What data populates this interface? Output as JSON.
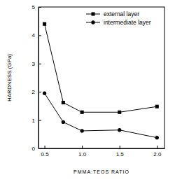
{
  "chart_data": {
    "type": "line",
    "x_label": "PMMA:TEOS RATIO",
    "y_label": "HARDNESS (GPa)",
    "x": [
      0.5,
      0.75,
      1.0,
      1.5,
      2.0
    ],
    "series": [
      {
        "name": "external layer",
        "color": "#000000",
        "marker": "square",
        "line_style": "solid",
        "values": [
          4.4,
          1.62,
          1.28,
          1.28,
          1.48
        ]
      },
      {
        "name": "intermediate layer",
        "color": "#000000",
        "marker": "circle",
        "line_style": "solid",
        "values": [
          1.95,
          0.93,
          0.62,
          0.65,
          0.38
        ]
      }
    ],
    "xlim": [
      0.42,
      2.1
    ],
    "xticks": [
      0.5,
      {
        "value": 1,
        "label": "1.0"
      },
      1.5,
      {
        "value": 2,
        "label": "2.0"
      }
    ],
    "ylim": [
      0,
      5
    ],
    "yticks": [
      0,
      1,
      2,
      3,
      4,
      5
    ],
    "grid": false,
    "legend": "upper right"
  }
}
